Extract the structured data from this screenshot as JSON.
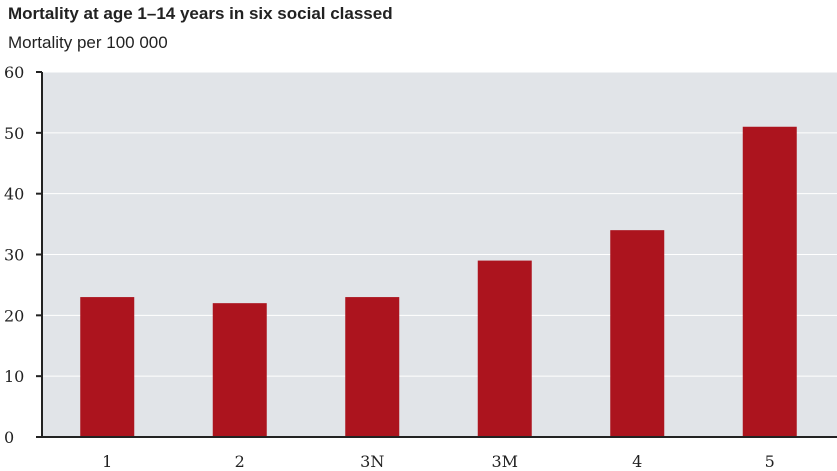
{
  "chart_data": {
    "type": "bar",
    "title": "Mortality at age 1–14 years in six social classed",
    "subtitle": "Mortality per 100 000",
    "categories": [
      "1",
      "2",
      "3N",
      "3M",
      "4",
      "5"
    ],
    "values": [
      23,
      22,
      23,
      29,
      34,
      51
    ],
    "ylim": [
      0,
      60
    ],
    "yticks": [
      0,
      10,
      20,
      30,
      40,
      50,
      60
    ],
    "xlabel": "",
    "ylabel": "",
    "grid": true,
    "legend": "none",
    "colors": {
      "bar": "#ac141e",
      "plot_background": "#e1e4e8",
      "gridline": "#ffffff",
      "axis": "#222222"
    }
  }
}
